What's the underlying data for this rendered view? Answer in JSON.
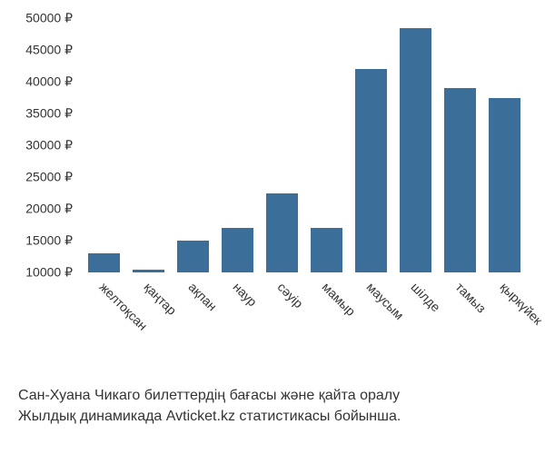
{
  "chart": {
    "type": "bar",
    "categories": [
      "желтоқсан",
      "қаңтар",
      "ақпан",
      "наур",
      "сәуір",
      "мамыр",
      "маусым",
      "шілде",
      "тамыз",
      "қыркүйек"
    ],
    "values": [
      13000,
      10500,
      15000,
      17000,
      22500,
      17000,
      42000,
      48500,
      39000,
      37500
    ],
    "bar_color": "#3b6e99",
    "y_min": 10000,
    "y_max": 50000,
    "y_ticks": [
      10000,
      15000,
      20000,
      25000,
      30000,
      35000,
      40000,
      45000,
      50000
    ],
    "y_tick_labels": [
      "10000 ₽",
      "15000 ₽",
      "20000 ₽",
      "25000 ₽",
      "30000 ₽",
      "35000 ₽",
      "40000 ₽",
      "45000 ₽",
      "50000 ₽"
    ],
    "background_color": "#ffffff",
    "tick_fontsize": 14,
    "x_label_rotation": 45,
    "bar_width": 0.72
  },
  "caption": {
    "line1": "Сан-Хуана Чикаго билеттердің бағасы және қайта оралу",
    "line2": "Жылдық динамикада Avticket.kz статистикасы бойынша."
  }
}
